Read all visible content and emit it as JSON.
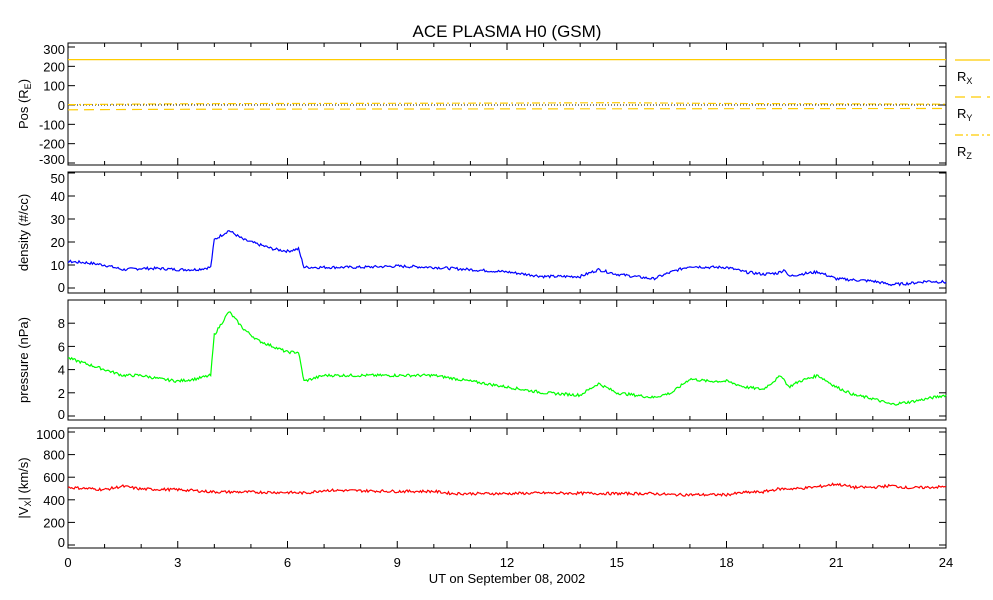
{
  "chart_data": {
    "title": "ACE PLASMA H0 (GSM)",
    "xlabel": "UT on September 08, 2002",
    "xlim": [
      0,
      24
    ],
    "xticks": [
      "0",
      "3",
      "6",
      "9",
      "12",
      "15",
      "18",
      "21",
      "24"
    ],
    "panels": [
      {
        "type": "line",
        "ylabel": "Pos (R",
        "ylabel_sub": "E",
        "ylabel_end": ")",
        "ylim": [
          -300,
          300
        ],
        "yticks": [
          "300",
          "200",
          "100",
          "0",
          "-100",
          "-200",
          "-300"
        ],
        "zero_line": true,
        "legend": [
          {
            "name": "R",
            "sub": "X",
            "style": "solid"
          },
          {
            "name": "R",
            "sub": "Y",
            "style": "dashed"
          },
          {
            "name": "R",
            "sub": "Z",
            "style": "dashdot"
          }
        ],
        "series": [
          {
            "name": "RX",
            "color": "#ffcc00",
            "style": "solid",
            "x": [
              0,
              24
            ],
            "y": [
              235,
              235
            ]
          },
          {
            "name": "RY",
            "color": "#ffcc00",
            "style": "dashed",
            "x": [
              0,
              3,
              6,
              12,
              18,
              24
            ],
            "y": [
              -25,
              -22,
              -21,
              -20,
              -19,
              -18
            ]
          },
          {
            "name": "RZ",
            "color": "#ffcc00",
            "style": "dashdot",
            "x": [
              0,
              3,
              6,
              12,
              15,
              18,
              24
            ],
            "y": [
              2,
              6,
              8,
              10,
              12,
              8,
              4
            ]
          }
        ]
      },
      {
        "type": "line",
        "ylabel": "density (#/cc)",
        "ylim": [
          0,
          50
        ],
        "yticks": [
          "50",
          "40",
          "30",
          "20",
          "10",
          "0"
        ],
        "series": [
          {
            "name": "density",
            "color": "#0000ff",
            "x": [
              0,
              0.5,
              1,
              1.5,
              2,
              2.5,
              3,
              3.5,
              3.9,
              4.0,
              4.4,
              4.8,
              5.2,
              5.6,
              6,
              6.3,
              6.45,
              7,
              8,
              9,
              10,
              11,
              12,
              12.5,
              13,
              14,
              14.5,
              15,
              15.5,
              16,
              16.5,
              17,
              17.5,
              18,
              18.5,
              19,
              19.4,
              19.6,
              19.7,
              20,
              20.5,
              21,
              21.5,
              22,
              22.5,
              23,
              23.5,
              24
            ],
            "y": [
              11.5,
              11,
              10,
              8,
              8.5,
              8.5,
              8,
              8,
              9,
              21,
              25,
              21,
              19,
              17,
              16,
              17,
              9,
              9,
              9,
              9.5,
              9,
              8,
              7,
              6,
              5,
              5,
              8,
              6,
              5,
              4,
              7,
              9.5,
              9,
              9,
              7,
              6,
              6.5,
              8,
              5,
              6,
              7,
              4,
              3.5,
              3,
              1.5,
              2,
              3,
              2.5
            ]
          }
        ]
      },
      {
        "type": "line",
        "ylabel": "pressure (nPa)",
        "ylim": [
          0,
          10
        ],
        "yticks": [
          "8",
          "6",
          "4",
          "2",
          "0"
        ],
        "series": [
          {
            "name": "pressure",
            "color": "#00ff00",
            "x": [
              0,
              0.5,
              1,
              1.5,
              2,
              2.5,
              3,
              3.5,
              3.9,
              4.0,
              4.4,
              4.8,
              5.2,
              5.6,
              6,
              6.3,
              6.45,
              7,
              8,
              9,
              10,
              11,
              12,
              13,
              14,
              14.5,
              15,
              16,
              16.5,
              17,
              17.5,
              18,
              18.5,
              19,
              19.5,
              19.7,
              20,
              20.5,
              21,
              21.5,
              22,
              22.5,
              23,
              23.5,
              24
            ],
            "y": [
              5,
              4.5,
              4,
              3.5,
              3.5,
              3.2,
              3,
              3.2,
              3.5,
              7,
              9,
              7.5,
              6.5,
              6,
              5.5,
              5.5,
              3,
              3.5,
              3.5,
              3.5,
              3.5,
              3,
              2.5,
              2,
              1.8,
              2.8,
              2,
              1.6,
              2,
              3.2,
              3,
              3,
              2.5,
              2.3,
              3.5,
              2.5,
              3,
              3.5,
              2.5,
              1.8,
              1.5,
              1,
              1.2,
              1.5,
              1.8
            ]
          }
        ]
      },
      {
        "type": "line",
        "ylabel": "|V",
        "ylabel_sub": "X",
        "ylabel_end": "| (km/s)",
        "ylim": [
          0,
          1000
        ],
        "yticks": [
          "1000",
          "800",
          "600",
          "400",
          "200",
          "0"
        ],
        "series": [
          {
            "name": "Vx",
            "color": "#ff0000",
            "x": [
              0,
              1,
              1.5,
              2,
              3,
              4,
              5,
              6,
              6.5,
              7,
              8,
              9,
              10,
              10.5,
              12,
              13,
              15,
              16,
              16.5,
              17,
              18,
              18.5,
              19,
              19.4,
              20,
              20.5,
              21,
              21.5,
              22,
              22.5,
              23,
              24
            ],
            "y": [
              510,
              490,
              520,
              495,
              490,
              470,
              468,
              465,
              460,
              485,
              480,
              475,
              475,
              455,
              455,
              460,
              455,
              455,
              445,
              445,
              445,
              465,
              470,
              495,
              500,
              515,
              540,
              510,
              510,
              525,
              505,
              515
            ]
          }
        ]
      }
    ]
  }
}
